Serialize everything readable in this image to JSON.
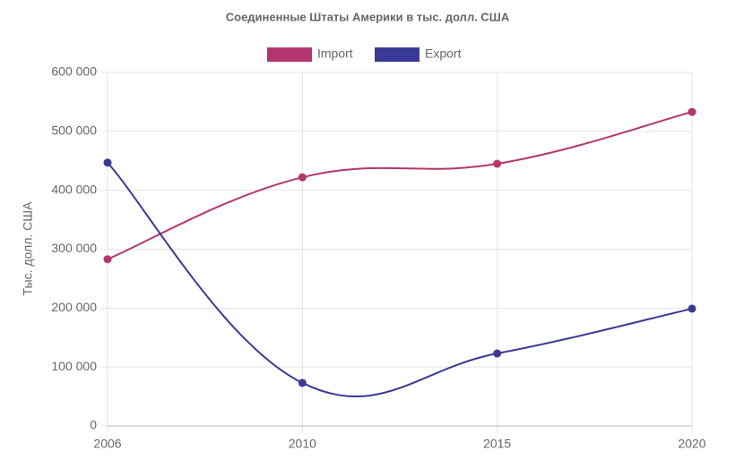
{
  "chart_data": {
    "type": "line",
    "title": "Соединенные Штаты Америки в тыс. долл. США",
    "y_label": "Тыс. долл. США",
    "categories": [
      "2006",
      "2010",
      "2015",
      "2020"
    ],
    "series": [
      {
        "name": "Import",
        "color": "#b5366f",
        "values": [
          283000,
          422000,
          445000,
          533000
        ]
      },
      {
        "name": "Export",
        "color": "#3a3a96",
        "values": [
          447000,
          73000,
          123000,
          199000
        ]
      }
    ],
    "ylim": [
      0,
      600000
    ],
    "yticks": [
      0,
      {
        "value": 100000,
        "label": "100 000"
      },
      {
        "value": 200000,
        "label": "200 000"
      },
      {
        "value": 300000,
        "label": "300 000"
      },
      {
        "value": 400000,
        "label": "400 000"
      },
      {
        "value": 500000,
        "label": "500 000"
      },
      {
        "value": 600000,
        "label": "600 000"
      }
    ],
    "grid": true
  }
}
